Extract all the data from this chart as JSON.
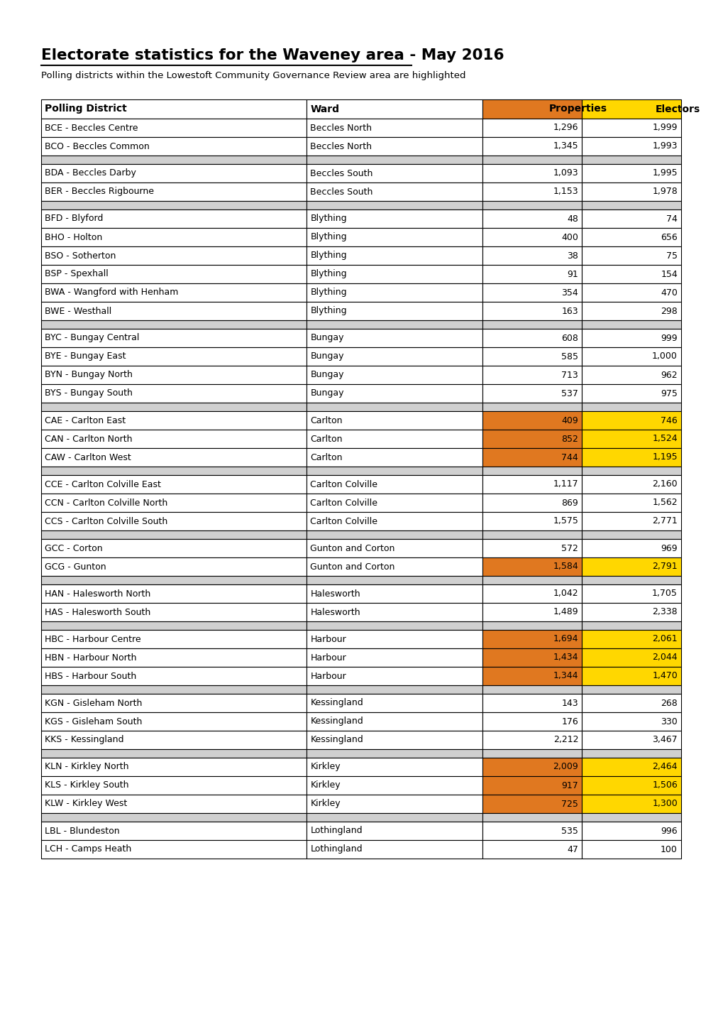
{
  "title": "Electorate statistics for the Waveney area - May 2016",
  "subtitle": "Polling districts within the Lowestoft Community Governance Review area are highlighted",
  "header": [
    "Polling District",
    "Ward",
    "Properties",
    "Electors"
  ],
  "header_bg": [
    "#ffffff",
    "#ffffff",
    "#e07820",
    "#ffd700"
  ],
  "rows": [
    {
      "district": "BCE - Beccles Centre",
      "ward": "Beccles North",
      "props": "1,296",
      "electors": "1,999",
      "highlight": false
    },
    {
      "district": "BCO - Beccles Common",
      "ward": "Beccles North",
      "props": "1,345",
      "electors": "1,993",
      "highlight": false
    },
    {
      "district": null,
      "ward": null,
      "props": null,
      "electors": null,
      "highlight": false
    },
    {
      "district": "BDA - Beccles Darby",
      "ward": "Beccles South",
      "props": "1,093",
      "electors": "1,995",
      "highlight": false
    },
    {
      "district": "BER - Beccles Rigbourne",
      "ward": "Beccles South",
      "props": "1,153",
      "electors": "1,978",
      "highlight": false
    },
    {
      "district": null,
      "ward": null,
      "props": null,
      "electors": null,
      "highlight": false
    },
    {
      "district": "BFD - Blyford",
      "ward": "Blything",
      "props": "48",
      "electors": "74",
      "highlight": false
    },
    {
      "district": "BHO - Holton",
      "ward": "Blything",
      "props": "400",
      "electors": "656",
      "highlight": false
    },
    {
      "district": "BSO - Sotherton",
      "ward": "Blything",
      "props": "38",
      "electors": "75",
      "highlight": false
    },
    {
      "district": "BSP - Spexhall",
      "ward": "Blything",
      "props": "91",
      "electors": "154",
      "highlight": false
    },
    {
      "district": "BWA - Wangford with Henham",
      "ward": "Blything",
      "props": "354",
      "electors": "470",
      "highlight": false
    },
    {
      "district": "BWE - Westhall",
      "ward": "Blything",
      "props": "163",
      "electors": "298",
      "highlight": false
    },
    {
      "district": null,
      "ward": null,
      "props": null,
      "electors": null,
      "highlight": false
    },
    {
      "district": "BYC - Bungay Central",
      "ward": "Bungay",
      "props": "608",
      "electors": "999",
      "highlight": false
    },
    {
      "district": "BYE - Bungay East",
      "ward": "Bungay",
      "props": "585",
      "electors": "1,000",
      "highlight": false
    },
    {
      "district": "BYN - Bungay North",
      "ward": "Bungay",
      "props": "713",
      "electors": "962",
      "highlight": false
    },
    {
      "district": "BYS - Bungay South",
      "ward": "Bungay",
      "props": "537",
      "electors": "975",
      "highlight": false
    },
    {
      "district": null,
      "ward": null,
      "props": null,
      "electors": null,
      "highlight": false
    },
    {
      "district": "CAE - Carlton East",
      "ward": "Carlton",
      "props": "409",
      "electors": "746",
      "highlight": true
    },
    {
      "district": "CAN - Carlton North",
      "ward": "Carlton",
      "props": "852",
      "electors": "1,524",
      "highlight": true
    },
    {
      "district": "CAW - Carlton West",
      "ward": "Carlton",
      "props": "744",
      "electors": "1,195",
      "highlight": true
    },
    {
      "district": null,
      "ward": null,
      "props": null,
      "electors": null,
      "highlight": false
    },
    {
      "district": "CCE - Carlton Colville East",
      "ward": "Carlton Colville",
      "props": "1,117",
      "electors": "2,160",
      "highlight": false
    },
    {
      "district": "CCN - Carlton Colville North",
      "ward": "Carlton Colville",
      "props": "869",
      "electors": "1,562",
      "highlight": false
    },
    {
      "district": "CCS - Carlton Colville South",
      "ward": "Carlton Colville",
      "props": "1,575",
      "electors": "2,771",
      "highlight": false
    },
    {
      "district": null,
      "ward": null,
      "props": null,
      "electors": null,
      "highlight": false
    },
    {
      "district": "GCC - Corton",
      "ward": "Gunton and Corton",
      "props": "572",
      "electors": "969",
      "highlight": false
    },
    {
      "district": "GCG - Gunton",
      "ward": "Gunton and Corton",
      "props": "1,584",
      "electors": "2,791",
      "highlight": true
    },
    {
      "district": null,
      "ward": null,
      "props": null,
      "electors": null,
      "highlight": false
    },
    {
      "district": "HAN - Halesworth North",
      "ward": "Halesworth",
      "props": "1,042",
      "electors": "1,705",
      "highlight": false
    },
    {
      "district": "HAS - Halesworth South",
      "ward": "Halesworth",
      "props": "1,489",
      "electors": "2,338",
      "highlight": false
    },
    {
      "district": null,
      "ward": null,
      "props": null,
      "electors": null,
      "highlight": false
    },
    {
      "district": "HBC - Harbour Centre",
      "ward": "Harbour",
      "props": "1,694",
      "electors": "2,061",
      "highlight": true
    },
    {
      "district": "HBN - Harbour North",
      "ward": "Harbour",
      "props": "1,434",
      "electors": "2,044",
      "highlight": true
    },
    {
      "district": "HBS - Harbour South",
      "ward": "Harbour",
      "props": "1,344",
      "electors": "1,470",
      "highlight": true
    },
    {
      "district": null,
      "ward": null,
      "props": null,
      "electors": null,
      "highlight": false
    },
    {
      "district": "KGN - Gisleham North",
      "ward": "Kessingland",
      "props": "143",
      "electors": "268",
      "highlight": false
    },
    {
      "district": "KGS - Gisleham South",
      "ward": "Kessingland",
      "props": "176",
      "electors": "330",
      "highlight": false
    },
    {
      "district": "KKS - Kessingland",
      "ward": "Kessingland",
      "props": "2,212",
      "electors": "3,467",
      "highlight": false
    },
    {
      "district": null,
      "ward": null,
      "props": null,
      "electors": null,
      "highlight": false
    },
    {
      "district": "KLN - Kirkley North",
      "ward": "Kirkley",
      "props": "2,009",
      "electors": "2,464",
      "highlight": true
    },
    {
      "district": "KLS - Kirkley South",
      "ward": "Kirkley",
      "props": "917",
      "electors": "1,506",
      "highlight": true
    },
    {
      "district": "KLW - Kirkley West",
      "ward": "Kirkley",
      "props": "725",
      "electors": "1,300",
      "highlight": true
    },
    {
      "district": null,
      "ward": null,
      "props": null,
      "electors": null,
      "highlight": false
    },
    {
      "district": "LBL - Blundeston",
      "ward": "Lothingland",
      "props": "535",
      "electors": "996",
      "highlight": false
    },
    {
      "district": "LCH - Camps Heath",
      "ward": "Lothingland",
      "props": "47",
      "electors": "100",
      "highlight": false
    }
  ],
  "highlight_props_color": "#e07820",
  "highlight_electors_color": "#ffd700",
  "separator_color": "#cccccc",
  "border_color": "#000000",
  "normal_row_bg": "#ffffff",
  "separator_bg": "#d0d0d0"
}
